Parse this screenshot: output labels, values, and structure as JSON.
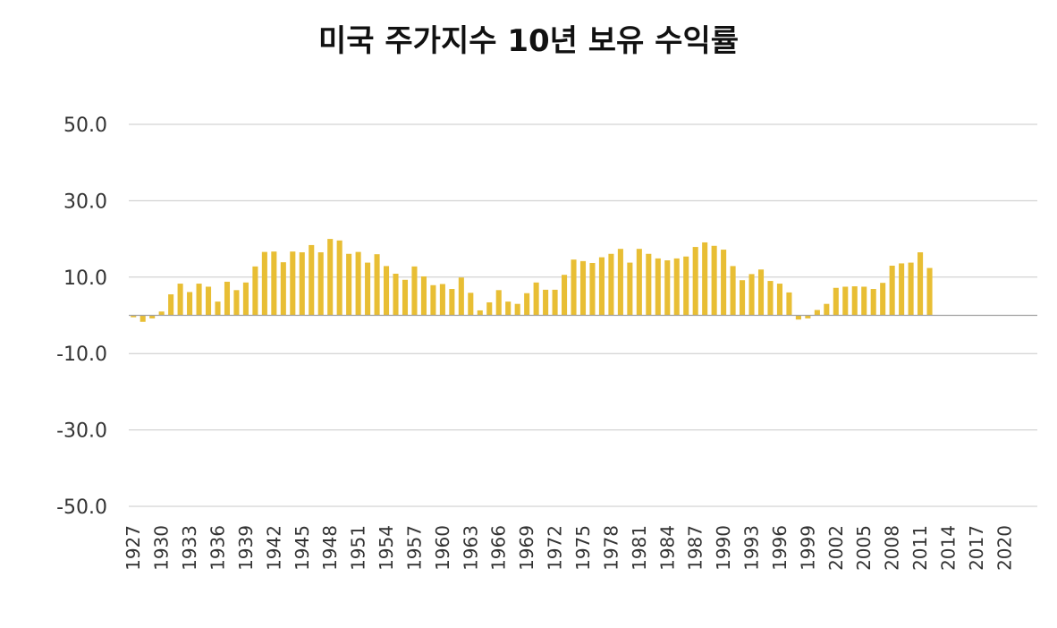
{
  "chart_data": {
    "type": "bar",
    "title": "미국 주가지수 10년 보유 수익률",
    "xlabel": "",
    "ylabel": "",
    "ylim": [
      -50,
      50
    ],
    "y_ticks": [
      "50.0",
      "30.0",
      "10.0",
      "-10.0",
      "-30.0",
      "-50.0"
    ],
    "grid": true,
    "legend": "none",
    "colors": {
      "bar": "#E8BE34",
      "grid": "#C8C8C8",
      "zero_line": "#A0A0A0"
    },
    "categories": [
      "1927",
      "1928",
      "1929",
      "1930",
      "1931",
      "1932",
      "1933",
      "1934",
      "1935",
      "1936",
      "1937",
      "1938",
      "1939",
      "1940",
      "1941",
      "1942",
      "1943",
      "1944",
      "1945",
      "1946",
      "1947",
      "1948",
      "1949",
      "1950",
      "1951",
      "1952",
      "1953",
      "1954",
      "1955",
      "1956",
      "1957",
      "1958",
      "1959",
      "1960",
      "1961",
      "1962",
      "1963",
      "1964",
      "1965",
      "1966",
      "1967",
      "1968",
      "1969",
      "1970",
      "1971",
      "1972",
      "1973",
      "1974",
      "1975",
      "1976",
      "1977",
      "1978",
      "1979",
      "1980",
      "1981",
      "1982",
      "1983",
      "1984",
      "1985",
      "1986",
      "1987",
      "1988",
      "1989",
      "1990",
      "1991",
      "1992",
      "1993",
      "1994",
      "1995",
      "1996",
      "1997",
      "1998",
      "1999",
      "2000",
      "2001",
      "2002",
      "2003",
      "2004",
      "2005",
      "2006",
      "2007",
      "2008",
      "2009",
      "2010",
      "2011",
      "2012",
      "2013",
      "2014",
      "2015",
      "2016",
      "2017",
      "2018",
      "2019",
      "2020",
      "2021",
      "2022",
      "2023"
    ],
    "x_tick_labels": [
      "1927",
      "1930",
      "1933",
      "1936",
      "1939",
      "1942",
      "1945",
      "1948",
      "1951",
      "1954",
      "1957",
      "1960",
      "1963",
      "1966",
      "1969",
      "1972",
      "1975",
      "1978",
      "1981",
      "1984",
      "1987",
      "1990",
      "1993",
      "1996",
      "1999",
      "2002",
      "2005",
      "2008",
      "2011",
      "2014",
      "2017",
      "2020"
    ],
    "values": [
      -0.5,
      -1.7,
      -0.8,
      1.0,
      5.5,
      8.3,
      6.1,
      8.3,
      7.5,
      3.6,
      8.8,
      6.6,
      8.6,
      12.8,
      16.6,
      16.7,
      13.9,
      16.7,
      16.5,
      18.4,
      16.5,
      20.0,
      19.6,
      16.1,
      16.6,
      13.8,
      16.0,
      12.9,
      10.9,
      9.3,
      12.8,
      10.2,
      7.9,
      8.2,
      6.9,
      9.9,
      5.9,
      1.3,
      3.4,
      6.6,
      3.6,
      3.0,
      5.8,
      8.6,
      6.7,
      6.7,
      10.6,
      14.6,
      14.2,
      13.7,
      15.2,
      16.1,
      17.4,
      13.8,
      17.4,
      16.1,
      14.9,
      14.4,
      14.9,
      15.4,
      17.9,
      19.1,
      18.2,
      17.2,
      12.9,
      9.2,
      10.8,
      12.0,
      9.0,
      8.3,
      6.0,
      -1.1,
      -0.8,
      1.4,
      3.0,
      7.2,
      7.5,
      7.6,
      7.5,
      6.9,
      8.5,
      13.0,
      13.6,
      13.8,
      16.5,
      12.4,
      null,
      null,
      null,
      null,
      null,
      null,
      null,
      null,
      null,
      null,
      null
    ]
  }
}
